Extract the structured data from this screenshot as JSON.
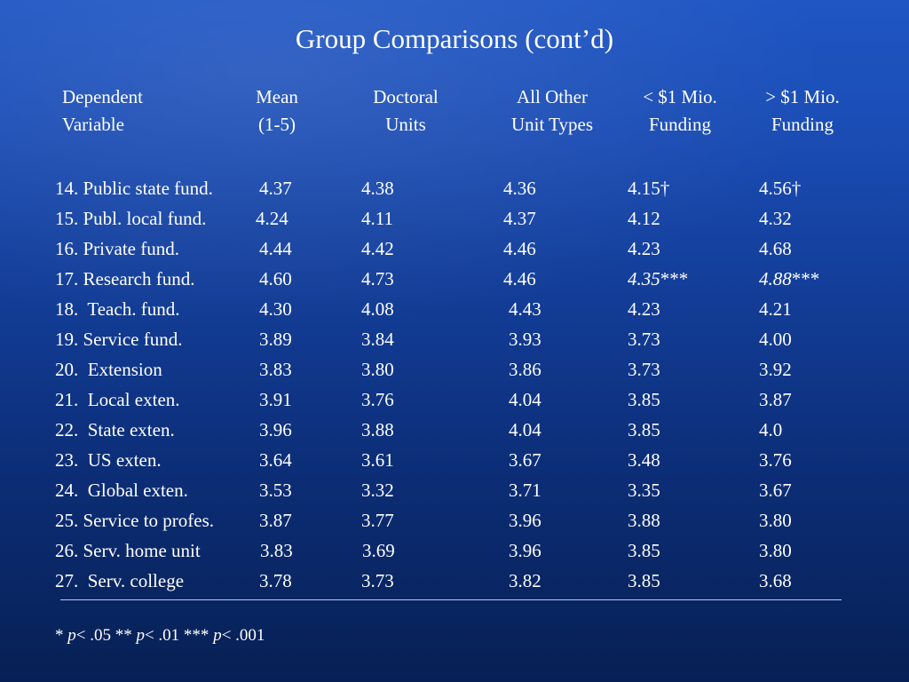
{
  "title": "Group Comparisons (cont’d)",
  "headers": {
    "dependent": [
      "Dependent",
      "Variable"
    ],
    "mean": [
      "Mean",
      "(1-5)"
    ],
    "doctoral": [
      "Doctoral",
      "Units"
    ],
    "all_other": [
      "All Other",
      "Unit Types"
    ],
    "lt1mio": [
      "< $1 Mio.",
      "Funding"
    ],
    "gt1mio": [
      "> $1 Mio.",
      "Funding"
    ]
  },
  "rows": [
    {
      "variable": "14. Public state fund.",
      "mean": "4.37",
      "doctoral": "4.38",
      "all_other": "4.36",
      "lt1mio": "4.15†",
      "gt1mio": "4.56†"
    },
    {
      "variable": "15. Publ. local fund.",
      "mean": "4.24",
      "doctoral": "4.11",
      "all_other": "4.37",
      "lt1mio": "4.12",
      "gt1mio": "4.32"
    },
    {
      "variable": "16. Private fund.",
      "mean": "4.44",
      "doctoral": "4.42",
      "all_other": "4.46",
      "lt1mio": "4.23",
      "gt1mio": "4.68"
    },
    {
      "variable": "17. Research fund.",
      "mean": "4.60",
      "doctoral": "4.73",
      "all_other": "4.46",
      "lt1mio": "4.35",
      "lt1mio_mark": "***",
      "gt1mio": "4.88",
      "gt1mio_mark": "***"
    },
    {
      "variable": "18.  Teach. fund.",
      "mean": "4.30",
      "doctoral": "4.08",
      "all_other": "4.43",
      "lt1mio": "4.23",
      "gt1mio": "4.21"
    },
    {
      "variable": "19. Service fund.",
      "mean": "3.89",
      "doctoral": "3.84",
      "all_other": "3.93",
      "lt1mio": "3.73",
      "gt1mio": "4.00"
    },
    {
      "variable": "20.  Extension",
      "mean": "3.83",
      "doctoral": "3.80",
      "all_other": "3.86",
      "lt1mio": "3.73",
      "gt1mio": "3.92"
    },
    {
      "variable": "21.  Local exten.",
      "mean": "3.91",
      "doctoral": "3.76",
      "all_other": "4.04",
      "lt1mio": "3.85",
      "gt1mio": "3.87"
    },
    {
      "variable": "22.  State exten.",
      "mean": "3.96",
      "doctoral": "3.88",
      "all_other": "4.04",
      "lt1mio": "3.85",
      "gt1mio": "4.0"
    },
    {
      "variable": "23.  US exten.",
      "mean": "3.64",
      "doctoral": "3.61",
      "all_other": "3.67",
      "lt1mio": "3.48",
      "gt1mio": "3.76"
    },
    {
      "variable": "24.  Global exten.",
      "mean": "3.53",
      "doctoral": "3.32",
      "all_other": "3.71",
      "lt1mio": "3.35",
      "gt1mio": "3.67"
    },
    {
      "variable": "25. Service to profes.",
      "mean": "3.87",
      "doctoral": "3.77",
      "all_other": "3.96",
      "lt1mio": "3.88",
      "gt1mio": "3.80"
    },
    {
      "variable": "26. Serv. home unit",
      "mean": "3.83",
      "doctoral": "3.69",
      "all_other": "3.96",
      "lt1mio": "3.85",
      "gt1mio": "3.80"
    },
    {
      "variable": "27.  Serv. college",
      "mean": "3.78",
      "doctoral": "3.73",
      "all_other": "3.82",
      "lt1mio": "3.85",
      "gt1mio": "3.68"
    }
  ],
  "footnote": {
    "p_symbol": "p",
    "part1": "* ",
    "part2": "< .05 ** ",
    "part3": "< .01 *** ",
    "part4": "< .001"
  }
}
